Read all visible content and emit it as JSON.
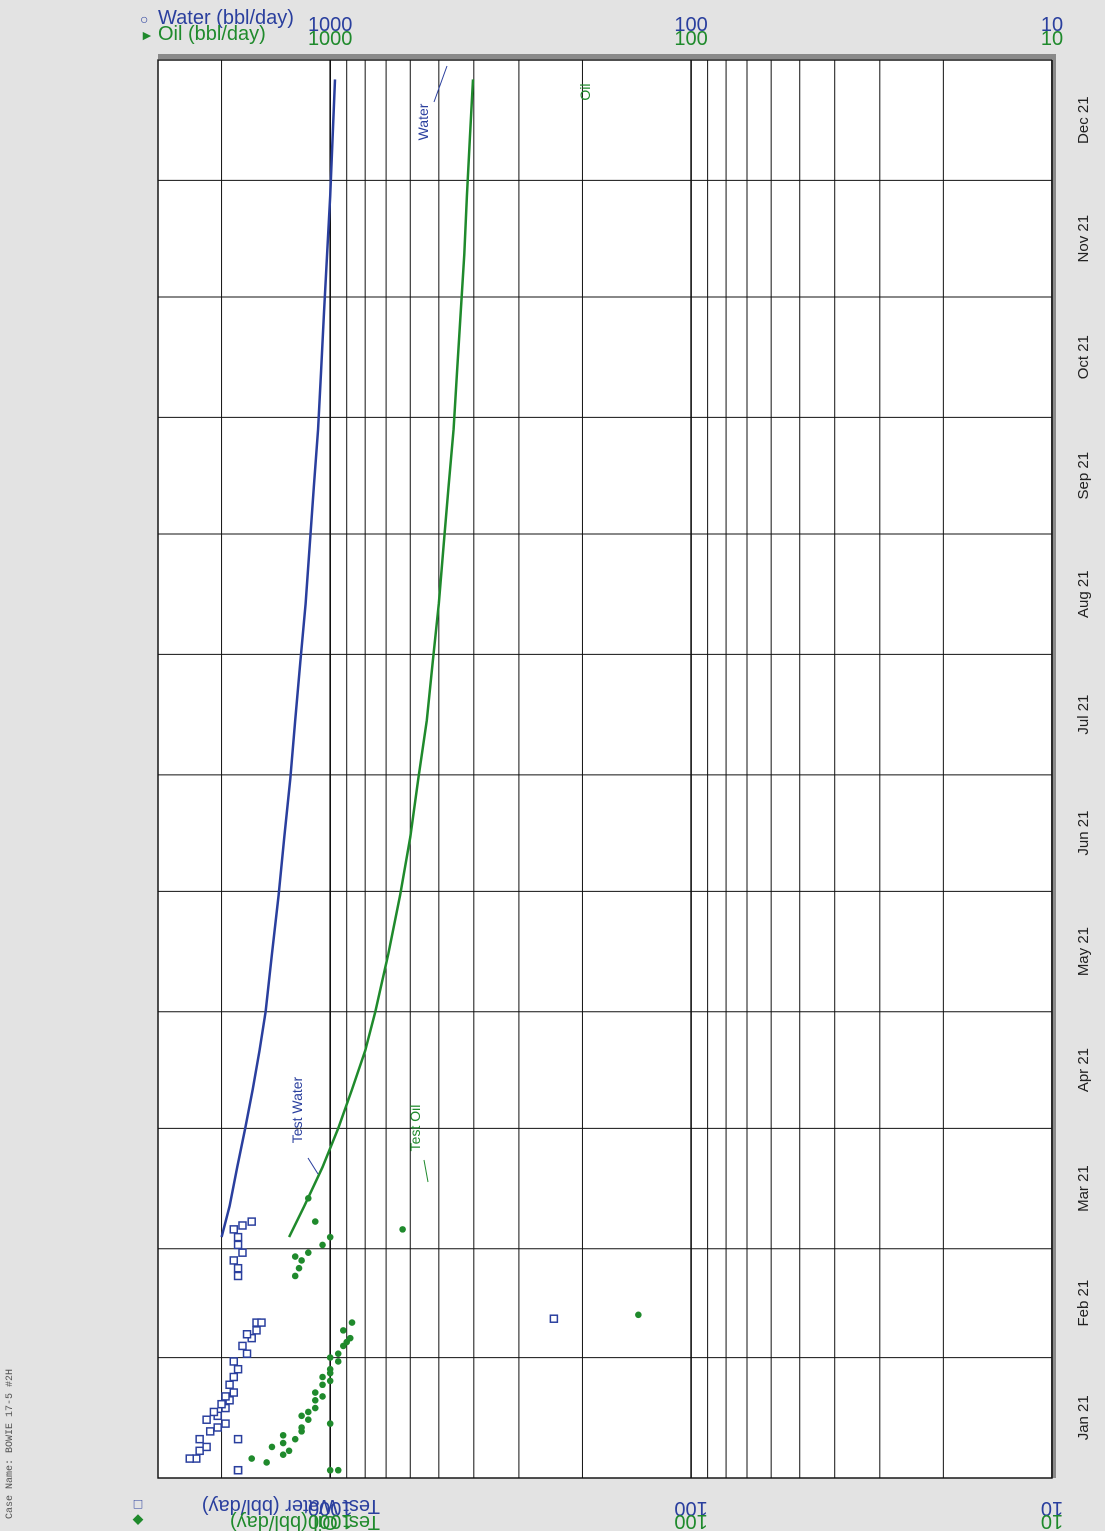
{
  "case_name": "Case Name: BOWIE 17-5 #2H",
  "chart_data": {
    "type": "scatter",
    "orientation": "rotated-90",
    "x_axis": {
      "scale": "time",
      "tick_labels": [
        "Jan 21",
        "Feb 21",
        "Mar 21",
        "Apr 21",
        "May 21",
        "Jun 21",
        "Jul 21",
        "Aug 21",
        "Sep 21",
        "Oct 21",
        "Nov 21",
        "Dec 21"
      ],
      "range": [
        "2021-01-01",
        "2022-01-01"
      ]
    },
    "y_axis": {
      "scale": "log",
      "range": [
        10,
        3000
      ],
      "tick_labels": [
        "1000",
        "100",
        "10"
      ],
      "tick_values": [
        1000,
        100,
        10
      ]
    },
    "legend_top": [
      {
        "symbol": "○",
        "name": "Water (bbl/day)",
        "color": "#2a3f9e"
      },
      {
        "symbol": "►",
        "name": "Oil (bbl/day)",
        "color": "#1f8a2c"
      }
    ],
    "legend_bottom": [
      {
        "symbol": "□",
        "name": "Test Water (bbl/day)",
        "color": "#2a3f9e"
      },
      {
        "symbol": "◆",
        "name": "Test Oil (bbl/day)",
        "color": "#1f8a2c"
      }
    ],
    "annotations": [
      {
        "text": "Water",
        "color": "#2a3f9e"
      },
      {
        "text": "Oil",
        "color": "#1f8a2c"
      },
      {
        "text": "Test Water",
        "color": "#2a3f9e"
      },
      {
        "text": "Test Oil",
        "color": "#1f8a2c"
      }
    ],
    "series": [
      {
        "name": "Water (bbl/day)",
        "kind": "line",
        "color": "#2a3f9e",
        "x": [
          62,
          70,
          80,
          90,
          100,
          110,
          120,
          135,
          150,
          165,
          180,
          195,
          210,
          225,
          240,
          255,
          270,
          285,
          300,
          315,
          330,
          345,
          360
        ],
        "y": [
          2000,
          1900,
          1810,
          1720,
          1640,
          1570,
          1510,
          1450,
          1390,
          1340,
          1290,
          1250,
          1210,
          1170,
          1140,
          1110,
          1080,
          1060,
          1040,
          1020,
          1000,
          985,
          970
        ]
      },
      {
        "name": "Oil (bbl/day)",
        "kind": "line",
        "color": "#1f8a2c",
        "x": [
          62,
          70,
          80,
          90,
          100,
          110,
          120,
          135,
          150,
          165,
          180,
          195,
          210,
          225,
          240,
          255,
          270,
          285,
          300,
          315,
          330,
          345,
          360
        ],
        "y": [
          1300,
          1180,
          1050,
          950,
          870,
          800,
          750,
          690,
          640,
          600,
          570,
          540,
          520,
          500,
          485,
          470,
          455,
          445,
          435,
          425,
          418,
          410,
          402
        ]
      },
      {
        "name": "Test Water (bbl/day)",
        "kind": "points",
        "marker": "square",
        "color": "#2a3f9e",
        "x": [
          2,
          2,
          5,
          5,
          7,
          8,
          10,
          10,
          12,
          13,
          14,
          15,
          16,
          17,
          18,
          19,
          20,
          21,
          22,
          24,
          26,
          28,
          30,
          32,
          34,
          36,
          37,
          38,
          40,
          40,
          41,
          52,
          54,
          56,
          58,
          60,
          62,
          64,
          65,
          66
        ],
        "y": [
          1800,
          1800,
          2350,
          2450,
          2300,
          2200,
          2300,
          1800,
          2150,
          2050,
          1950,
          2200,
          2050,
          2100,
          1950,
          2000,
          1900,
          1950,
          1850,
          1900,
          1850,
          1800,
          1850,
          1700,
          1750,
          1650,
          1700,
          1600,
          1600,
          1550,
          240,
          1800,
          1800,
          1850,
          1750,
          1800,
          1800,
          1850,
          1750,
          1650
        ]
      },
      {
        "name": "Test Oil (bbl/day)",
        "kind": "points",
        "marker": "diamond",
        "color": "#1f8a2c",
        "x": [
          2,
          2,
          4,
          5,
          6,
          7,
          8,
          9,
          10,
          11,
          12,
          13,
          14,
          15,
          16,
          17,
          18,
          20,
          21,
          22,
          24,
          25,
          26,
          27,
          28,
          30,
          31,
          32,
          34,
          35,
          36,
          38,
          40,
          42,
          52,
          54,
          56,
          57,
          58,
          60,
          62,
          64,
          66,
          72
        ],
        "y": [
          1000,
          950,
          1500,
          1650,
          1350,
          1300,
          1450,
          1350,
          1250,
          1350,
          1200,
          1200,
          1000,
          1150,
          1200,
          1150,
          1100,
          1100,
          1050,
          1100,
          1050,
          1000,
          1050,
          1000,
          1000,
          950,
          1000,
          950,
          920,
          900,
          880,
          920,
          870,
          140,
          1250,
          1220,
          1200,
          1250,
          1150,
          1050,
          1000,
          630,
          1100,
          1150
        ]
      }
    ],
    "grid": true
  }
}
